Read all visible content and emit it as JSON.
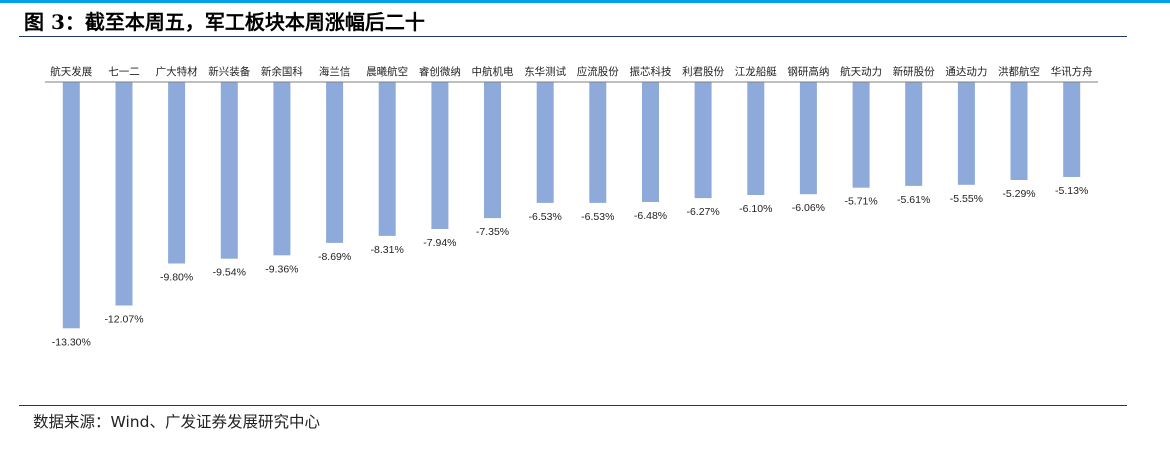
{
  "figure": {
    "title": "图 3：截至本周五，军工板块本周涨幅后二十",
    "source": "数据来源：Wind、广发证券发展研究中心",
    "colors": {
      "accent": "#00a0e9",
      "bar": "#8eaadb",
      "rule": "#1f3864"
    }
  },
  "chart_data": {
    "type": "bar",
    "title": "截至本周五，军工板块本周涨幅后二十",
    "xlabel": "",
    "ylabel": "",
    "ylim": [
      -14.5,
      0
    ],
    "grid": false,
    "legend": "none",
    "categories": [
      "航天发展",
      "七一二",
      "广大特材",
      "新兴装备",
      "新余国科",
      "海兰信",
      "晨曦航空",
      "睿创微纳",
      "中航机电",
      "东华测试",
      "应流股份",
      "振芯科技",
      "利君股份",
      "江龙船艇",
      "钢研高纳",
      "航天动力",
      "新研股份",
      "通达动力",
      "洪都航空",
      "华讯方舟"
    ],
    "values": [
      -13.3,
      -12.07,
      -9.8,
      -9.54,
      -9.36,
      -8.69,
      -8.31,
      -7.94,
      -7.35,
      -6.53,
      -6.53,
      -6.48,
      -6.27,
      -6.1,
      -6.06,
      -5.71,
      -5.61,
      -5.55,
      -5.29,
      -5.13
    ],
    "labels": [
      "-13.30%",
      "-12.07%",
      "-9.80%",
      "-9.54%",
      "-9.36%",
      "-8.69%",
      "-8.31%",
      "-7.94%",
      "-7.35%",
      "-6.53%",
      "-6.53%",
      "-6.48%",
      "-6.27%",
      "-6.10%",
      "-6.06%",
      "-5.71%",
      "-5.61%",
      "-5.55%",
      "-5.29%",
      "-5.13%"
    ]
  }
}
